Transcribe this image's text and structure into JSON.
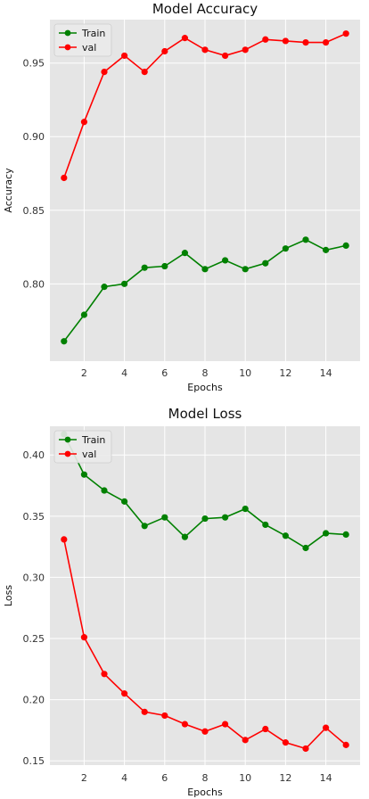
{
  "colors": {
    "train": "#008000",
    "val": "#ff0000",
    "plot_bg": "#e5e5e5",
    "grid": "#ffffff"
  },
  "chart_data": [
    {
      "type": "line",
      "title": "Model Accuracy",
      "xlabel": "Epochs",
      "ylabel": "Accuracy",
      "x": [
        1,
        2,
        3,
        4,
        5,
        6,
        7,
        8,
        9,
        10,
        11,
        12,
        13,
        14,
        15
      ],
      "xticks": [
        2,
        4,
        6,
        8,
        10,
        12,
        14
      ],
      "yticks": [
        0.8,
        0.85,
        0.9,
        0.95
      ],
      "ytick_labels": [
        "0.80",
        "0.85",
        "0.90",
        "0.95"
      ],
      "xlim": [
        0.3,
        15.7
      ],
      "ylim": [
        0.7475,
        0.9795
      ],
      "grid": true,
      "legend": "top-left",
      "series": [
        {
          "name": "Train",
          "color": "#008000",
          "values": [
            0.761,
            0.779,
            0.798,
            0.8,
            0.811,
            0.812,
            0.821,
            0.81,
            0.816,
            0.81,
            0.814,
            0.824,
            0.83,
            0.823,
            0.826
          ]
        },
        {
          "name": "val",
          "color": "#ff0000",
          "values": [
            0.872,
            0.91,
            0.944,
            0.955,
            0.944,
            0.958,
            0.967,
            0.959,
            0.955,
            0.959,
            0.966,
            0.965,
            0.964,
            0.964,
            0.97
          ]
        }
      ]
    },
    {
      "type": "line",
      "title": "Model Loss",
      "xlabel": "Epochs",
      "ylabel": "Loss",
      "x": [
        1,
        2,
        3,
        4,
        5,
        6,
        7,
        8,
        9,
        10,
        11,
        12,
        13,
        14,
        15
      ],
      "xticks": [
        2,
        4,
        6,
        8,
        10,
        12,
        14
      ],
      "yticks": [
        0.15,
        0.2,
        0.25,
        0.3,
        0.35,
        0.4
      ],
      "ytick_labels": [
        "0.15",
        "0.20",
        "0.25",
        "0.30",
        "0.35",
        "0.40"
      ],
      "xlim": [
        0.3,
        15.7
      ],
      "ylim": [
        0.1465,
        0.4235
      ],
      "grid": true,
      "legend": "top-left",
      "series": [
        {
          "name": "Train",
          "color": "#008000",
          "values": [
            0.417,
            0.384,
            0.371,
            0.362,
            0.342,
            0.349,
            0.333,
            0.348,
            0.349,
            0.356,
            0.343,
            0.334,
            0.324,
            0.336,
            0.335
          ]
        },
        {
          "name": "val",
          "color": "#ff0000",
          "values": [
            0.331,
            0.251,
            0.221,
            0.205,
            0.19,
            0.187,
            0.18,
            0.174,
            0.18,
            0.167,
            0.176,
            0.165,
            0.16,
            0.177,
            0.163
          ]
        }
      ]
    }
  ]
}
